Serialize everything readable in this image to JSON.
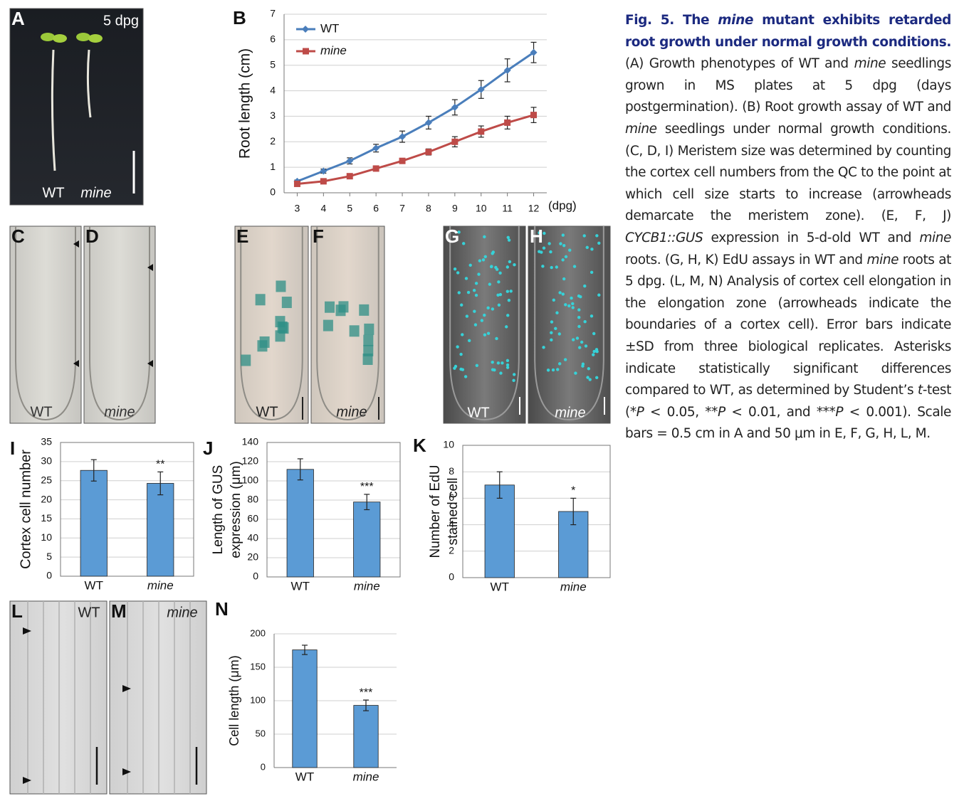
{
  "chart_data": [
    {
      "type": "line",
      "panel": "B",
      "ylabel": "Root length (cm)",
      "xlabel": "(dpg)",
      "x": [
        3,
        4,
        5,
        6,
        7,
        8,
        9,
        10,
        11,
        12
      ],
      "xlim": [
        2.5,
        12.5
      ],
      "xticks": [
        3,
        4,
        5,
        6,
        7,
        8,
        9,
        10,
        11,
        12
      ],
      "ylim": [
        0,
        7
      ],
      "yticks": [
        0,
        1,
        2,
        3,
        4,
        5,
        6,
        7
      ],
      "grid": true,
      "legend": "top-left",
      "series": [
        {
          "name": "WT",
          "color": "#4a7ebb",
          "marker": "diamond",
          "values": [
            0.45,
            0.85,
            1.25,
            1.75,
            2.2,
            2.75,
            3.35,
            4.05,
            4.8,
            5.5
          ],
          "errors": [
            0.05,
            0.08,
            0.12,
            0.15,
            0.22,
            0.25,
            0.3,
            0.35,
            0.45,
            0.4
          ]
        },
        {
          "name": "mine",
          "color": "#be4b48",
          "marker": "square",
          "values": [
            0.35,
            0.45,
            0.65,
            0.95,
            1.25,
            1.6,
            2.0,
            2.4,
            2.75,
            3.05
          ],
          "errors": [
            0.05,
            0.05,
            0.05,
            0.06,
            0.08,
            0.12,
            0.2,
            0.22,
            0.25,
            0.3
          ]
        }
      ]
    },
    {
      "type": "bar",
      "panel": "I",
      "ylabel": "Cortex cell number",
      "categories": [
        "WT",
        "mine"
      ],
      "values": [
        27.7,
        24.3
      ],
      "errors": [
        2.8,
        3.0
      ],
      "color": "#5b9bd5",
      "ylim": [
        0,
        35
      ],
      "yticks": [
        0,
        5,
        10,
        15,
        20,
        25,
        30,
        35
      ],
      "grid": true,
      "annotations": [
        {
          "text": "**",
          "category": "mine"
        }
      ]
    },
    {
      "type": "bar",
      "panel": "J",
      "ylabel": [
        "Length of GUS",
        "expression (μm)"
      ],
      "categories": [
        "WT",
        "mine"
      ],
      "values": [
        112,
        78
      ],
      "errors": [
        11,
        8
      ],
      "color": "#5b9bd5",
      "ylim": [
        0,
        140
      ],
      "yticks": [
        0,
        20,
        40,
        60,
        80,
        100,
        120,
        140
      ],
      "grid": true,
      "annotations": [
        {
          "text": "***",
          "category": "mine"
        }
      ]
    },
    {
      "type": "bar",
      "panel": "K",
      "ylabel": [
        "Number of EdU",
        "stained cell"
      ],
      "categories": [
        "WT",
        "mine"
      ],
      "values": [
        7,
        5
      ],
      "errors": [
        1,
        1
      ],
      "color": "#5b9bd5",
      "ylim": [
        0,
        10
      ],
      "yticks": [
        0,
        2,
        4,
        6,
        8,
        10
      ],
      "grid": true,
      "annotations": [
        {
          "text": "*",
          "category": "mine"
        }
      ]
    },
    {
      "type": "bar",
      "panel": "N",
      "ylabel": "Cell length (μm)",
      "categories": [
        "WT",
        "mine"
      ],
      "values": [
        176,
        93
      ],
      "errors": [
        7,
        8
      ],
      "color": "#5b9bd5",
      "ylim": [
        0,
        200
      ],
      "yticks": [
        0,
        50,
        100,
        150,
        200
      ],
      "grid": true,
      "annotations": [
        {
          "text": "***",
          "category": "mine"
        }
      ]
    }
  ],
  "images": [
    {
      "letter": "A",
      "texts": [
        "5 dpg",
        "WT",
        "mine"
      ]
    },
    {
      "letter": "C",
      "texts": [
        "WT"
      ]
    },
    {
      "letter": "D",
      "texts": [
        "mine"
      ]
    },
    {
      "letter": "E",
      "texts": [
        "WT"
      ]
    },
    {
      "letter": "F",
      "texts": [
        "mine"
      ]
    },
    {
      "letter": "G",
      "texts": [
        "WT"
      ]
    },
    {
      "letter": "H",
      "texts": [
        "mine"
      ]
    },
    {
      "letter": "L",
      "texts": [
        "WT"
      ]
    },
    {
      "letter": "M",
      "texts": [
        "mine"
      ]
    }
  ],
  "caption": [
    {
      "text": "Fig. 5. The ",
      "style": "title"
    },
    {
      "text": "mine",
      "style": "title-italic"
    },
    {
      "text": " mutant exhibits retarded root growth under normal growth conditions.",
      "style": "title"
    },
    {
      "text": " (A) Growth phenotypes of WT and ",
      "style": "plain"
    },
    {
      "text": "mine",
      "style": "italic"
    },
    {
      "text": " seedlings grown in MS plates at 5 dpg (days postgermination). (B) Root growth assay of WT and ",
      "style": "plain"
    },
    {
      "text": "mine",
      "style": "italic"
    },
    {
      "text": " seedlings under normal growth conditions. (C, D, I) Meristem size was determined by counting the cortex cell numbers from the QC to the point at which cell size starts to increase (arrowheads demarcate the meristem zone). (E, F, J) ",
      "style": "plain"
    },
    {
      "text": "CYCB1::GUS",
      "style": "italic"
    },
    {
      "text": " expression in 5-d-old WT and ",
      "style": "plain"
    },
    {
      "text": "mine",
      "style": "italic"
    },
    {
      "text": " roots. (G, H, K) EdU assays in WT and ",
      "style": "plain"
    },
    {
      "text": "mine",
      "style": "italic"
    },
    {
      "text": " roots at 5 dpg. (L, M, N) Analysis of cortex cell elongation in the elongation zone (arrowheads indicate the boundaries of a cortex cell). Error bars indicate ±SD from three biological replicates. Asterisks indicate statistically significant differences compared to WT, as determined by Student’s ",
      "style": "plain"
    },
    {
      "text": "t",
      "style": "italic"
    },
    {
      "text": "-test (*",
      "style": "plain"
    },
    {
      "text": "P",
      "style": "italic"
    },
    {
      "text": " < 0.05, **",
      "style": "plain"
    },
    {
      "text": "P",
      "style": "italic"
    },
    {
      "text": " < 0.01, and ***",
      "style": "plain"
    },
    {
      "text": "P",
      "style": "italic"
    },
    {
      "text": " < 0.001). Scale bars = 0.5 cm in A and 50 μm in E, F, G, H, L, M.",
      "style": "plain"
    }
  ]
}
